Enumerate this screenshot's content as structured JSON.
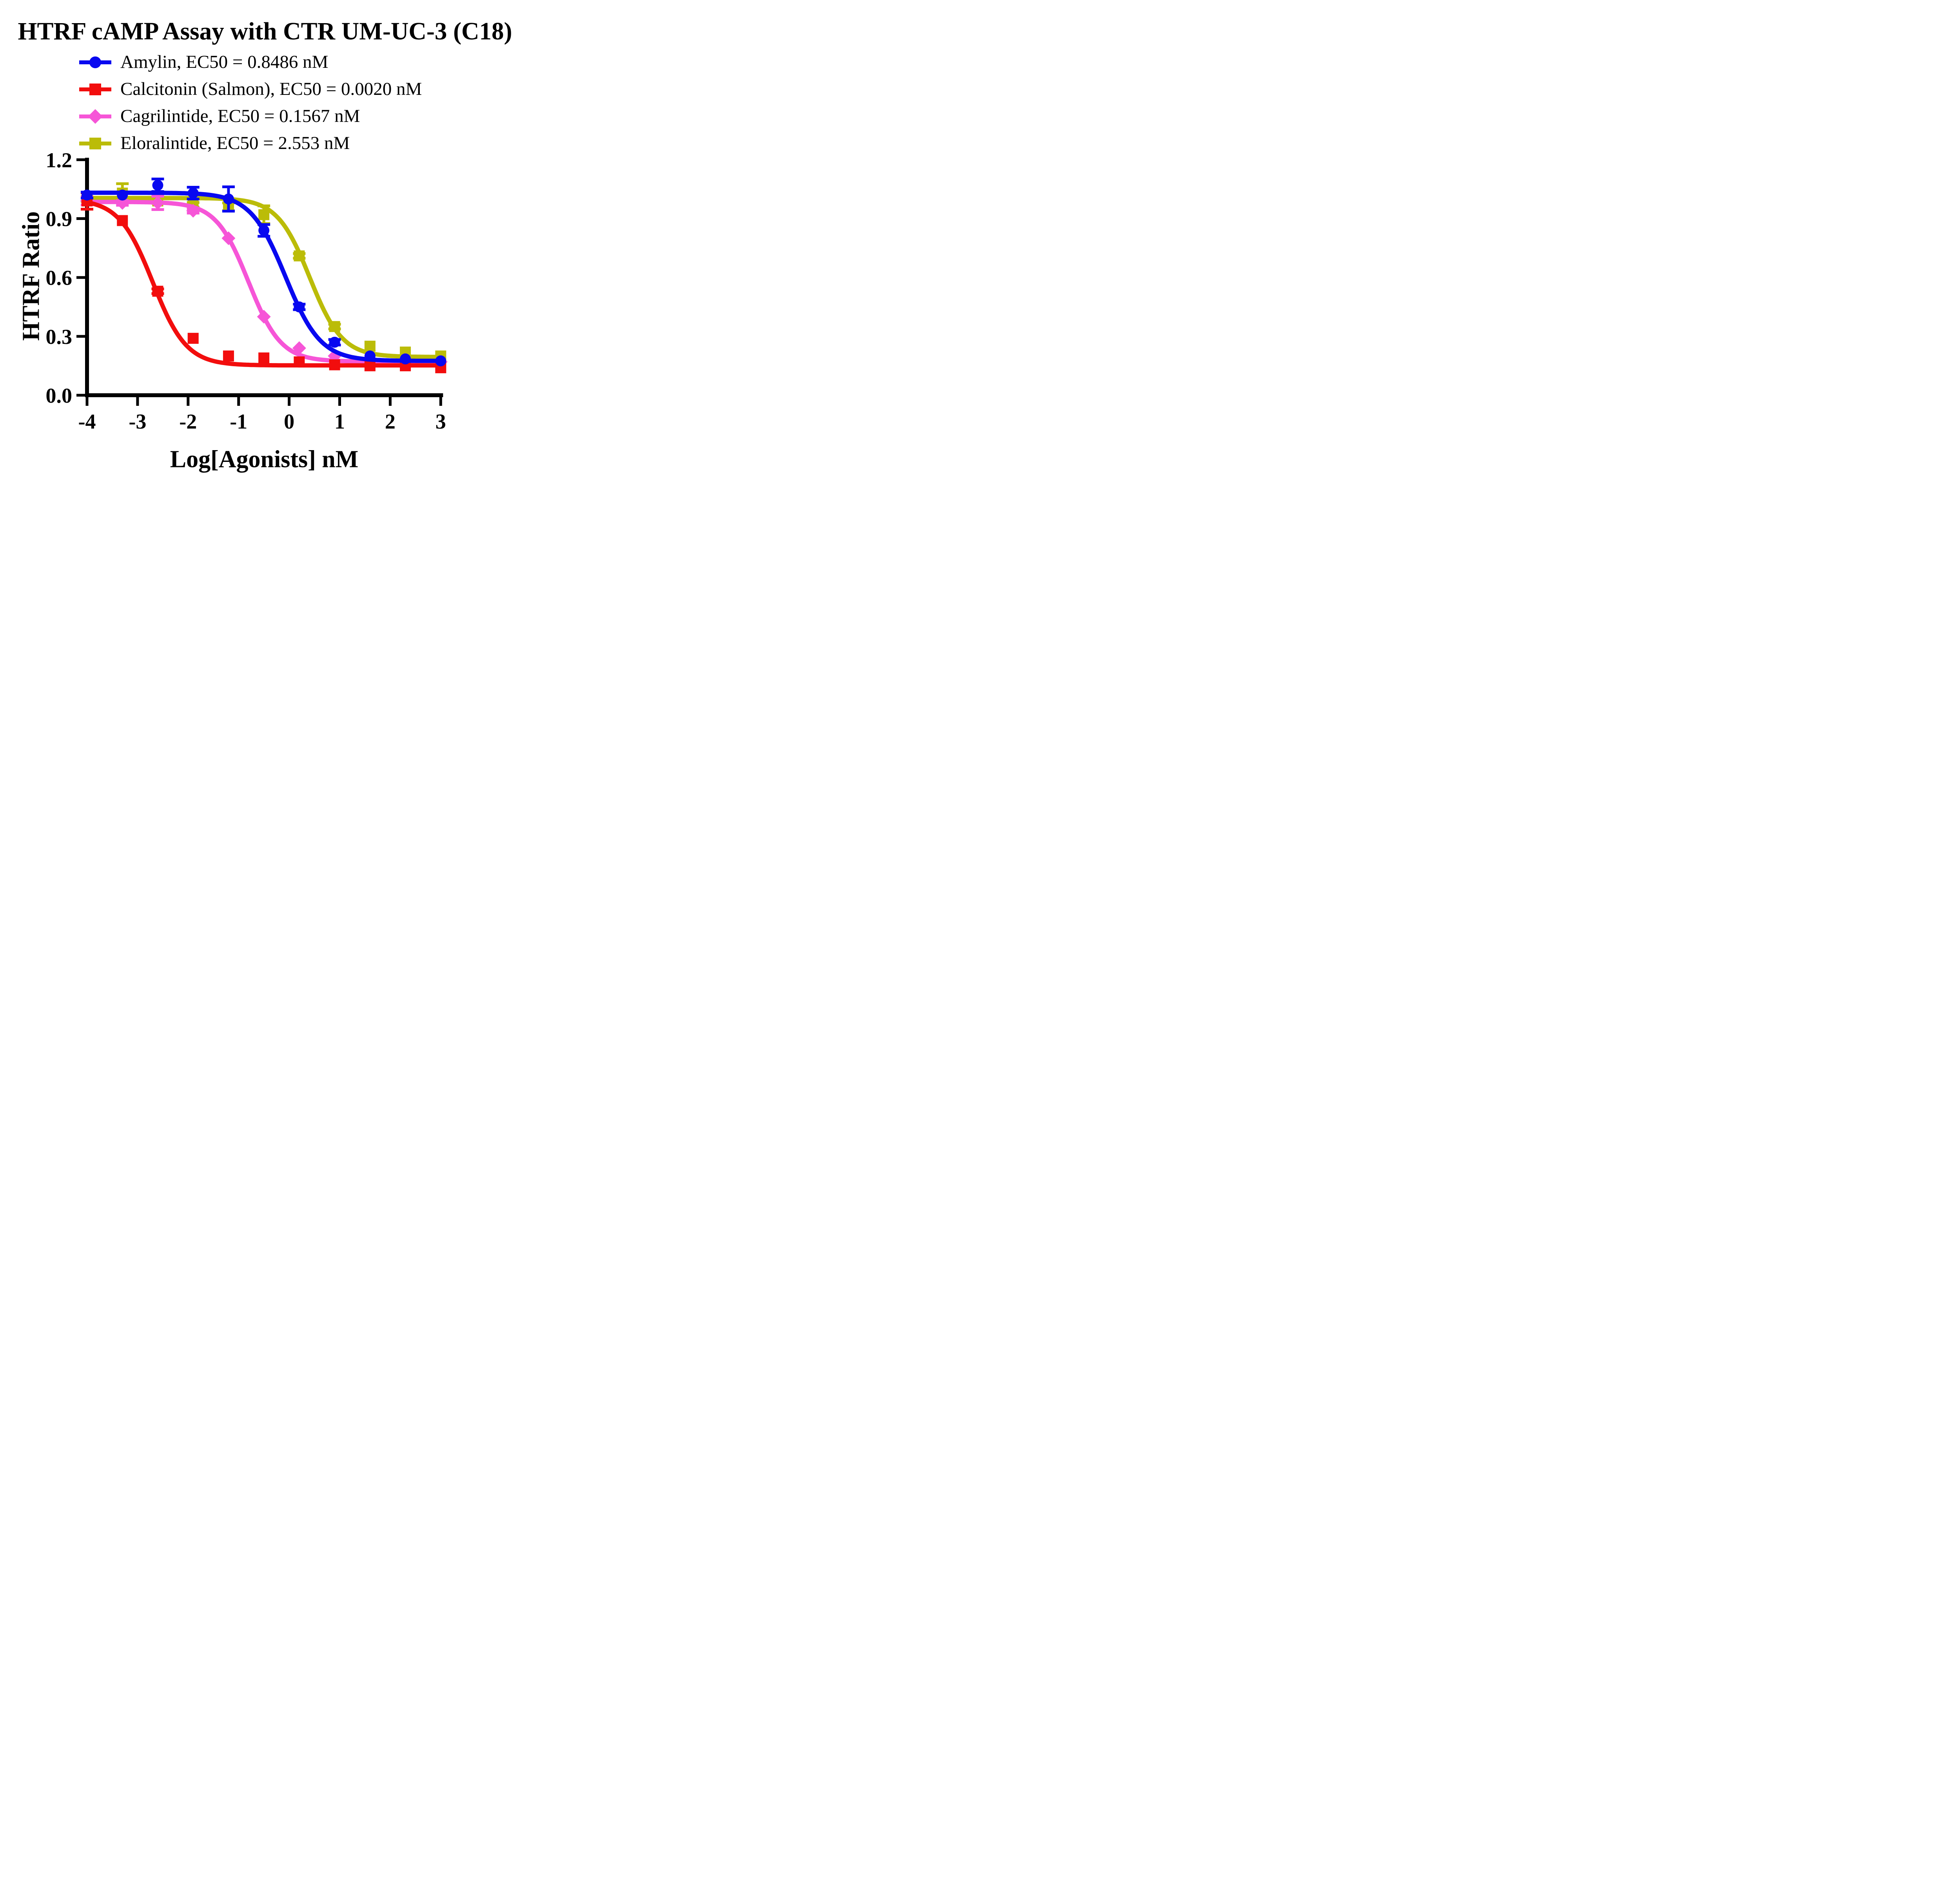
{
  "chart_data": {
    "type": "line",
    "title": "HTRF cAMP Assay with CTR UM-UC-3 (C18)",
    "xlabel": "Log[Agonists] nM",
    "ylabel": "HTRF Ratio",
    "xlim": [
      -4,
      3
    ],
    "ylim": [
      0.0,
      1.2
    ],
    "xticks": [
      -4,
      -3,
      -2,
      -1,
      0,
      1,
      2,
      3
    ],
    "xtick_labels": [
      "-4",
      "-3",
      "-2",
      "-1",
      "0",
      "1",
      "2",
      "3"
    ],
    "yticks": [
      0.0,
      0.3,
      0.6,
      0.9,
      1.2
    ],
    "ytick_labels": [
      "0.0",
      "0.3",
      "0.6",
      "0.9",
      "1.2"
    ],
    "grid": false,
    "legend_position": "top-left",
    "axis_color": "#000000",
    "x": [
      -4,
      -3.3,
      -2.6,
      -1.9,
      -1.2,
      -0.5,
      0.2,
      0.9,
      1.6,
      2.3,
      3
    ],
    "series": [
      {
        "name": "Amylin",
        "legend": "Amylin, EC50 = 0.8486 nM",
        "ec50": "0.8486 nM",
        "color": "#0808F0",
        "marker": "circle",
        "values": [
          1.02,
          1.02,
          1.07,
          1.03,
          1.0,
          0.84,
          0.45,
          0.27,
          0.2,
          0.185,
          0.175
        ],
        "errors": [
          0.015,
          0.01,
          0.032,
          0.03,
          0.062,
          0.03,
          0.014,
          0.014,
          0.01,
          0.01,
          0.01
        ],
        "fit_hint": {
          "top": 1.032,
          "bottom": 0.175,
          "logEC50": -0.0713,
          "hill": 1.25
        }
      },
      {
        "name": "Calcitonin (Salmon)",
        "legend": "Calcitonin (Salmon), EC50 = 0.0020 nM",
        "ec50": "0.0020 nM",
        "color": "#F20D0D",
        "marker": "square",
        "values": [
          0.99,
          0.89,
          0.53,
          0.29,
          0.2,
          0.19,
          0.17,
          0.155,
          0.15,
          0.15,
          0.14
        ],
        "errors": [
          0.042,
          0.01,
          0.012,
          0.01,
          0.01,
          0.01,
          0.01,
          0.01,
          0.01,
          0.01,
          0.01
        ],
        "fit_hint": {
          "top": 1.0,
          "bottom": 0.152,
          "logEC50": -2.699,
          "hill": 1.3
        }
      },
      {
        "name": "Cagrilintide",
        "legend": "Cagrilintide, EC50 = 0.1567 nM",
        "ec50": "0.1567 nM",
        "color": "#F655D7",
        "marker": "diamond",
        "values": [
          0.99,
          0.98,
          0.98,
          0.94,
          0.8,
          0.4,
          0.24,
          0.2,
          0.185,
          0.18,
          0.17
        ],
        "errors": [
          0.02,
          0.012,
          0.034,
          0.012,
          0.01,
          0.01,
          0.01,
          0.01,
          0.01,
          0.01,
          0.01
        ],
        "fit_hint": {
          "top": 0.985,
          "bottom": 0.172,
          "logEC50": -0.8049,
          "hill": 1.35
        }
      },
      {
        "name": "Eloralintide",
        "legend": "Eloralintide, EC50 = 2.553 nM",
        "ec50": "2.553 nM",
        "color": "#BBBC08",
        "marker": "square",
        "values": [
          1.0,
          1.03,
          0.99,
          0.97,
          0.96,
          0.92,
          0.71,
          0.35,
          0.25,
          0.22,
          0.2
        ],
        "errors": [
          0.012,
          0.048,
          0.012,
          0.012,
          0.02,
          0.045,
          0.012,
          0.012,
          0.01,
          0.01,
          0.01
        ],
        "fit_hint": {
          "top": 1.005,
          "bottom": 0.195,
          "logEC50": 0.4071,
          "hill": 1.35
        }
      }
    ]
  }
}
